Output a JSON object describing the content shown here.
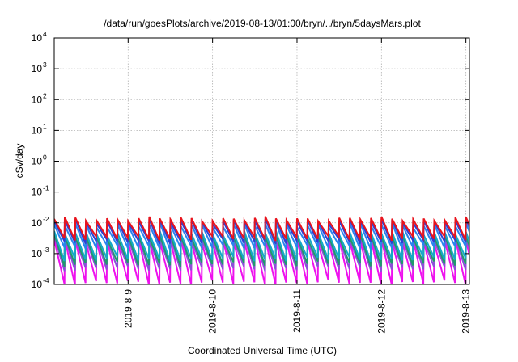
{
  "chart_data": {
    "type": "line",
    "title": "/data/run/goesPlots/archive/2019-08-13/01:00/bryn/../bryn/5daysMars.plot",
    "xlabel": "Coordinated Universal Time (UTC)",
    "ylabel": "cSv/day",
    "yscale": "log",
    "ylim": [
      0.0001,
      10000
    ],
    "y_ticks": [
      {
        "base": "10",
        "exp": "-4",
        "value": 0.0001
      },
      {
        "base": "10",
        "exp": "-3",
        "value": 0.001
      },
      {
        "base": "10",
        "exp": "-2",
        "value": 0.01
      },
      {
        "base": "10",
        "exp": "-1",
        "value": 0.1
      },
      {
        "base": "10",
        "exp": "0",
        "value": 1
      },
      {
        "base": "10",
        "exp": "1",
        "value": 10
      },
      {
        "base": "10",
        "exp": "2",
        "value": 100
      },
      {
        "base": "10",
        "exp": "3",
        "value": 1000
      },
      {
        "base": "10",
        "exp": "4",
        "value": 10000
      }
    ],
    "xlim": [
      "2019-08-08 03:00",
      "2019-08-13 01:00"
    ],
    "x_ticks": [
      {
        "label": "2019-8-9",
        "value": "2019-08-09"
      },
      {
        "label": "2019-8-10",
        "value": "2019-08-10"
      },
      {
        "label": "2019-8-11",
        "value": "2019-08-11"
      },
      {
        "label": "2019-8-12",
        "value": "2019-08-12"
      },
      {
        "label": "2019-8-13",
        "value": "2019-08-13"
      }
    ],
    "grid": true,
    "legend": "none",
    "pattern": {
      "shape": "sawtooth",
      "period_hours": 3,
      "first_peak": "2019-08-08 03:00"
    },
    "series": [
      {
        "color": "#e8141d",
        "peak": 0.0135,
        "trough": 0.0031
      },
      {
        "color": "#2e3fd4",
        "peak": 0.0115,
        "trough": 0.0024
      },
      {
        "color": "#2a84ee",
        "peak": 0.0085,
        "trough": 0.0016
      },
      {
        "color": "#15a9c8",
        "peak": 0.0048,
        "trough": 0.00065
      },
      {
        "color": "#1f9a6c",
        "peak": 0.0037,
        "trough": 0.00045
      },
      {
        "color": "#8c4fd8",
        "peak": 0.0032,
        "trough": 0.00032
      },
      {
        "color": "#ee11ee",
        "peak": 0.0026,
        "trough": 0.00011
      }
    ]
  }
}
